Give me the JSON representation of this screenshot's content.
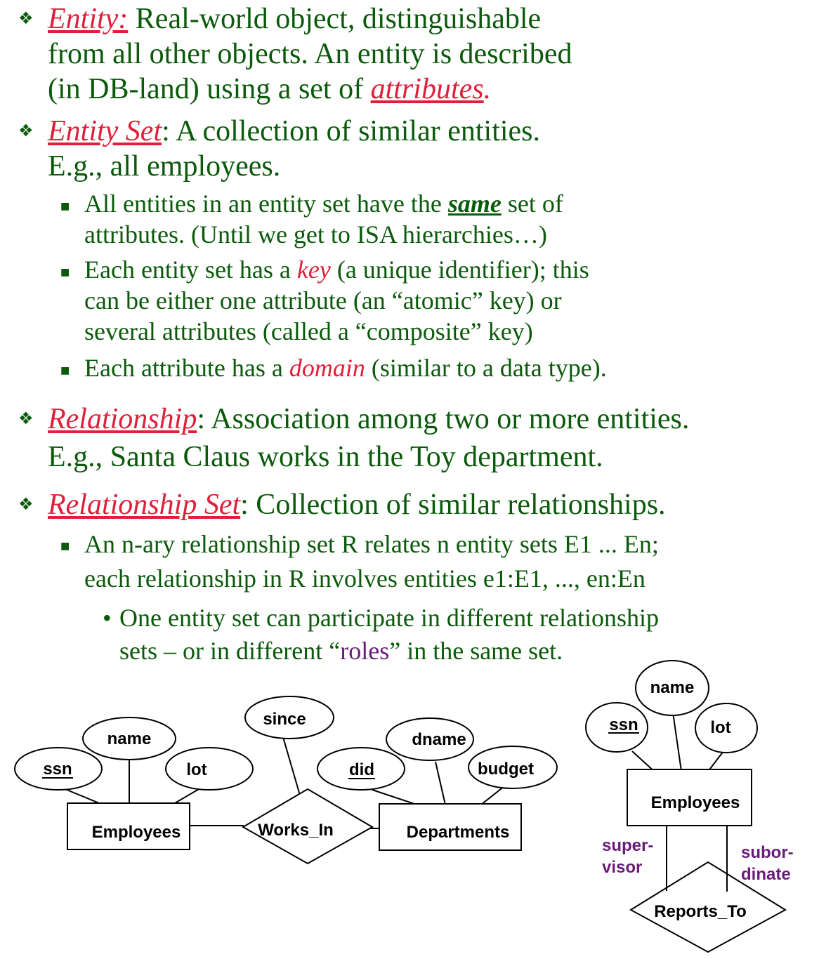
{
  "sections": {
    "entity": {
      "term": "Entity:",
      "line1_rest": "  Real-world object, distinguishable",
      "line2": "from all other objects. An entity is described",
      "line3_pre": "(in DB-land) using a set of ",
      "line3_term": "attributes",
      "line3_post": "."
    },
    "entity_set": {
      "term": "Entity Set",
      "line1_rest": ":  A collection of similar entities.",
      "line2": "E.g., all employees.",
      "bullets": {
        "b1_pre": "All entities in an entity set have the ",
        "b1_em": "same",
        "b1_post": " set of",
        "b1_line2": "attributes.  (Until we get to ISA hierarchies…)",
        "b2_pre": "Each entity set has a ",
        "b2_em": "key",
        "b2_post": " (a unique identifier); this",
        "b2_line2": "can be either one attribute (an “atomic” key) or",
        "b2_line3": "several attributes (called a “composite” key)",
        "b3_pre": "Each attribute has a ",
        "b3_em": "domain",
        "b3_post": " (similar to a data type)."
      }
    },
    "relationship": {
      "term": "Relationship",
      "line1_rest": ":  Association among two or more entities.",
      "line2": "E.g., Santa Claus works in the Toy department."
    },
    "relationship_set": {
      "term": "Relationship Set",
      "line1_rest": ":  Collection of similar relationships.",
      "sub_line1": "An n-ary relationship set R relates n entity sets E1 ... En;",
      "sub_line2": "each relationship in R involves entities e1:E1, ..., en:En",
      "subsub_line1": "One entity set can participate in different relationship",
      "subsub_line2_pre": "sets – or in different “",
      "subsub_line2_em": "roles",
      "subsub_line2_post": "” in the same set."
    }
  },
  "diagram_works_in": {
    "entity1": "Employees",
    "entity1_attrs": {
      "key": "ssn",
      "a2": "name",
      "a3": "lot"
    },
    "relationship": "Works_In",
    "relationship_attr": "since",
    "entity2": "Departments",
    "entity2_attrs": {
      "key": "did",
      "a2": "dname",
      "a3": "budget"
    }
  },
  "diagram_reports_to": {
    "entity": "Employees",
    "attrs": {
      "key": "ssn",
      "a2": "name",
      "a3": "lot"
    },
    "relationship": "Reports_To",
    "role_left": {
      "line1": "super-",
      "line2": "visor"
    },
    "role_right": {
      "line1": "subor-",
      "line2": "dinate"
    }
  },
  "colors": {
    "text_green": "#0b5a0b",
    "term_red": "#e0203a",
    "role_purple": "#6a1b7a"
  },
  "icons": [
    "diamond-bullet-icon",
    "square-bullet-icon",
    "dot-bullet-icon"
  ]
}
